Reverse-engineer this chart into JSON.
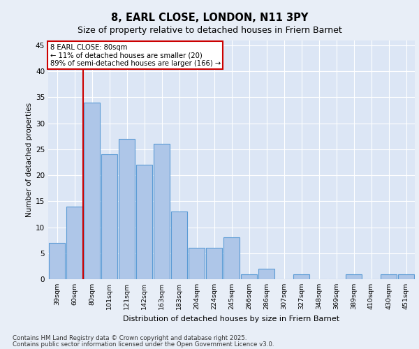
{
  "title1": "8, EARL CLOSE, LONDON, N11 3PY",
  "title2": "Size of property relative to detached houses in Friern Barnet",
  "xlabel": "Distribution of detached houses by size in Friern Barnet",
  "ylabel": "Number of detached properties",
  "categories": [
    "39sqm",
    "60sqm",
    "80sqm",
    "101sqm",
    "121sqm",
    "142sqm",
    "163sqm",
    "183sqm",
    "204sqm",
    "224sqm",
    "245sqm",
    "266sqm",
    "286sqm",
    "307sqm",
    "327sqm",
    "348sqm",
    "369sqm",
    "389sqm",
    "410sqm",
    "430sqm",
    "451sqm"
  ],
  "values": [
    7,
    14,
    34,
    24,
    27,
    22,
    26,
    13,
    6,
    6,
    8,
    1,
    2,
    0,
    1,
    0,
    0,
    1,
    0,
    1,
    1
  ],
  "bar_color": "#aec6e8",
  "bar_edge_color": "#5b9bd5",
  "vline_color": "#cc0000",
  "annotation_title": "8 EARL CLOSE: 80sqm",
  "annotation_line1": "← 11% of detached houses are smaller (20)",
  "annotation_line2": "89% of semi-detached houses are larger (166) →",
  "annotation_box_color": "#cc0000",
  "annotation_bg": "#ffffff",
  "ylim": [
    0,
    46
  ],
  "yticks": [
    0,
    5,
    10,
    15,
    20,
    25,
    30,
    35,
    40,
    45
  ],
  "bg_color": "#e8eef7",
  "plot_bg": "#dce6f5",
  "footer1": "Contains HM Land Registry data © Crown copyright and database right 2025.",
  "footer2": "Contains public sector information licensed under the Open Government Licence v3.0."
}
